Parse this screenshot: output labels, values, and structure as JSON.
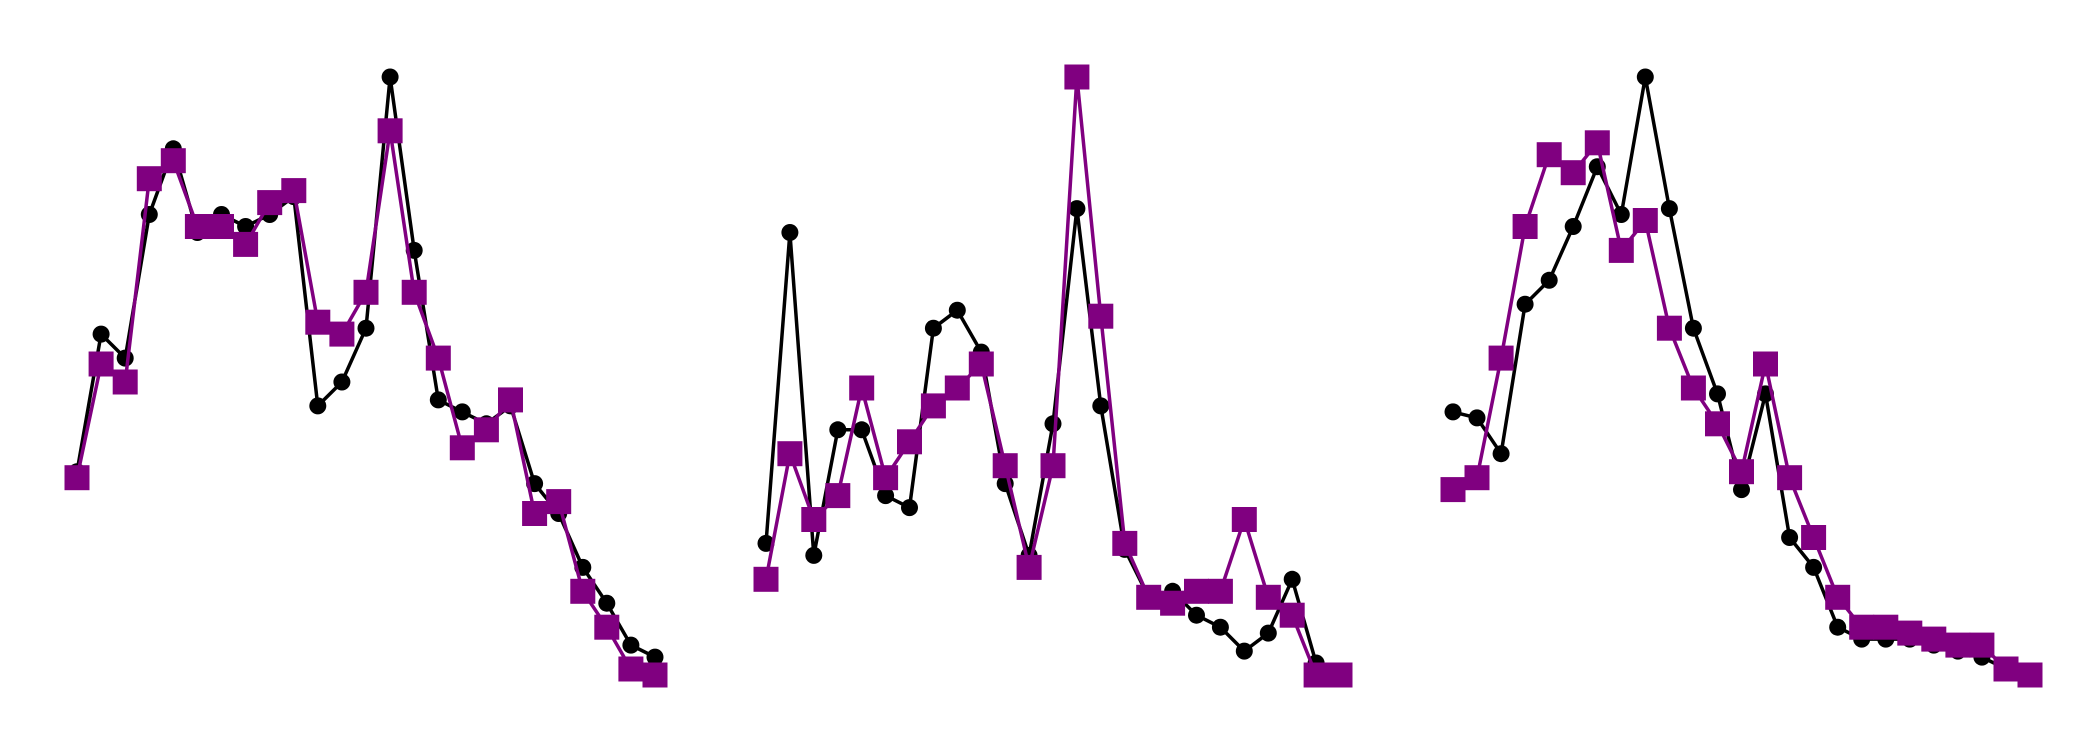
{
  "colors": {
    "series_a": "#000000",
    "series_b": "#800080",
    "background": "#ffffff"
  },
  "chart_data": [
    {
      "type": "line",
      "grid": false,
      "axes_visible": false,
      "x": [
        0,
        1,
        2,
        3,
        4,
        5,
        6,
        7,
        8,
        9,
        10,
        11,
        12,
        13,
        14,
        15,
        16,
        17,
        18,
        19,
        20,
        21,
        22,
        23,
        24
      ],
      "ylim": [
        0,
        1
      ],
      "series": [
        {
          "marker": "circle",
          "color": "#000000",
          "values": [
            0.34,
            0.57,
            0.53,
            0.77,
            0.88,
            0.74,
            0.77,
            0.75,
            0.77,
            0.8,
            0.45,
            0.49,
            0.58,
            1.0,
            0.71,
            0.46,
            0.44,
            0.42,
            0.45,
            0.32,
            0.27,
            0.18,
            0.12,
            0.05,
            0.03
          ]
        },
        {
          "marker": "square",
          "color": "#800080",
          "values": [
            0.33,
            0.52,
            0.49,
            0.83,
            0.86,
            0.75,
            0.75,
            0.72,
            0.79,
            0.81,
            0.59,
            0.57,
            0.64,
            0.91,
            0.64,
            0.53,
            0.38,
            0.41,
            0.46,
            0.27,
            0.29,
            0.14,
            0.08,
            0.01,
            0.0
          ]
        }
      ]
    },
    {
      "type": "line",
      "grid": false,
      "axes_visible": false,
      "x": [
        0,
        1,
        2,
        3,
        4,
        5,
        6,
        7,
        8,
        9,
        10,
        11,
        12,
        13,
        14,
        15,
        16,
        17,
        18,
        19,
        20,
        21,
        22,
        23,
        24
      ],
      "ylim": [
        0,
        1
      ],
      "series": [
        {
          "marker": "circle",
          "color": "#000000",
          "values": [
            0.22,
            0.74,
            0.2,
            0.41,
            0.41,
            0.3,
            0.28,
            0.58,
            0.61,
            0.54,
            0.32,
            0.2,
            0.42,
            0.78,
            0.45,
            0.21,
            0.13,
            0.14,
            0.1,
            0.08,
            0.04,
            0.07,
            0.16,
            0.02,
            0.0
          ]
        },
        {
          "marker": "square",
          "color": "#800080",
          "values": [
            0.16,
            0.37,
            0.26,
            0.3,
            0.48,
            0.33,
            0.39,
            0.45,
            0.48,
            0.52,
            0.35,
            0.18,
            0.35,
            1.0,
            0.6,
            0.22,
            0.13,
            0.12,
            0.14,
            0.14,
            0.26,
            0.13,
            0.1,
            0.0,
            0.0
          ]
        }
      ]
    },
    {
      "type": "line",
      "grid": false,
      "axes_visible": false,
      "x": [
        0,
        1,
        2,
        3,
        4,
        5,
        6,
        7,
        8,
        9,
        10,
        11,
        12,
        13,
        14,
        15,
        16,
        17,
        18,
        19,
        20,
        21,
        22,
        23,
        24
      ],
      "ylim": [
        0,
        1
      ],
      "series": [
        {
          "marker": "circle",
          "color": "#000000",
          "values": [
            0.44,
            0.43,
            0.37,
            0.62,
            0.66,
            0.75,
            0.85,
            0.77,
            1.0,
            0.78,
            0.58,
            0.47,
            0.31,
            0.47,
            0.23,
            0.18,
            0.08,
            0.06,
            0.06,
            0.06,
            0.05,
            0.04,
            0.03,
            0.01,
            0.0
          ]
        },
        {
          "marker": "square",
          "color": "#800080",
          "values": [
            0.31,
            0.33,
            0.53,
            0.75,
            0.87,
            0.84,
            0.89,
            0.71,
            0.76,
            0.58,
            0.48,
            0.42,
            0.34,
            0.52,
            0.33,
            0.23,
            0.13,
            0.08,
            0.08,
            0.07,
            0.06,
            0.05,
            0.05,
            0.01,
            0.0
          ]
        }
      ]
    }
  ]
}
